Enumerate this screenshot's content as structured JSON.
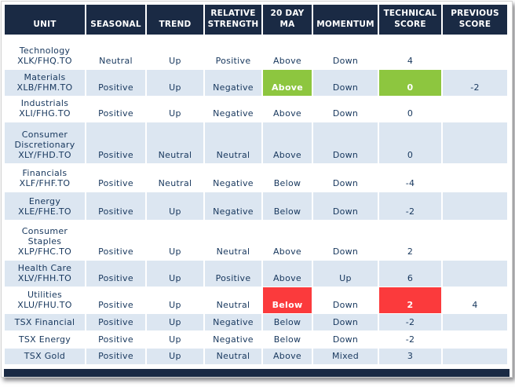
{
  "colors": {
    "header_bg": "#1a2a44",
    "alt_row_bg": "#dce6f1",
    "highlight_green": "#8dc63f",
    "highlight_red": "#fb3a3c",
    "cell_text": "#17375d"
  },
  "table": {
    "columns": [
      {
        "key": "unit",
        "label": "UNIT"
      },
      {
        "key": "seasonal",
        "label": "SEASONAL"
      },
      {
        "key": "trend",
        "label": "TREND"
      },
      {
        "key": "relative_strength",
        "label": "RELATIVE STRENGTH"
      },
      {
        "key": "ma_20day",
        "label": "20 DAY MA"
      },
      {
        "key": "momentum",
        "label": "MOMENTUM"
      },
      {
        "key": "technical_score",
        "label": "TECHNICAL SCORE"
      },
      {
        "key": "previous_score",
        "label": "PREVIOUS SCORE"
      }
    ],
    "rows": [
      {
        "unit_name": "Technology",
        "unit_ticker": "XLK/FHQ.TO",
        "seasonal": "Neutral",
        "trend": "Up",
        "relative_strength": "Positive",
        "ma_20day": "Above",
        "momentum": "Down",
        "technical_score": "4",
        "previous_score": "",
        "highlights": {}
      },
      {
        "unit_name": "Materials",
        "unit_ticker": "XLB/FHM.TO",
        "seasonal": "Positive",
        "trend": "Up",
        "relative_strength": "Negative",
        "ma_20day": "Above",
        "momentum": "Down",
        "technical_score": "0",
        "previous_score": "-2",
        "highlights": {
          "ma_20day": "green",
          "technical_score": "green"
        }
      },
      {
        "unit_name": "Industrials",
        "unit_ticker": "XLI/FHG.TO",
        "seasonal": "Positive",
        "trend": "Up",
        "relative_strength": "Negative",
        "ma_20day": "Above",
        "momentum": "Down",
        "technical_score": "0",
        "previous_score": "",
        "highlights": {}
      },
      {
        "unit_name": "Consumer Discretionary",
        "unit_ticker": "XLY/FHD.TO",
        "seasonal": "Positive",
        "trend": "Neutral",
        "relative_strength": "Neutral",
        "ma_20day": "Above",
        "momentum": "Down",
        "technical_score": "0",
        "previous_score": "",
        "highlights": {}
      },
      {
        "unit_name": "Financials",
        "unit_ticker": "XLF/FHF.TO",
        "seasonal": "Positive",
        "trend": "Neutral",
        "relative_strength": "Negative",
        "ma_20day": "Below",
        "momentum": "Down",
        "technical_score": "-4",
        "previous_score": "",
        "highlights": {}
      },
      {
        "unit_name": "Energy",
        "unit_ticker": "XLE/FHE.TO",
        "seasonal": "Positive",
        "trend": "Up",
        "relative_strength": "Negative",
        "ma_20day": "Below",
        "momentum": "Down",
        "technical_score": "-2",
        "previous_score": "",
        "highlights": {}
      },
      {
        "unit_name": "Consumer Staples",
        "unit_ticker": "XLP/FHC.TO",
        "seasonal": "Positive",
        "trend": "Up",
        "relative_strength": "Neutral",
        "ma_20day": "Above",
        "momentum": "Down",
        "technical_score": "2",
        "previous_score": "",
        "highlights": {}
      },
      {
        "unit_name": "Health Care",
        "unit_ticker": "XLV/FHH.TO",
        "seasonal": "Positive",
        "trend": "Up",
        "relative_strength": "Positive",
        "ma_20day": "Above",
        "momentum": "Up",
        "technical_score": "6",
        "previous_score": "",
        "highlights": {}
      },
      {
        "unit_name": "Utilities",
        "unit_ticker": "XLU/FHU.TO",
        "seasonal": "Positive",
        "trend": "Up",
        "relative_strength": "Neutral",
        "ma_20day": "Below",
        "momentum": "Down",
        "technical_score": "2",
        "previous_score": "4",
        "highlights": {
          "ma_20day": "red",
          "technical_score": "red"
        }
      },
      {
        "unit_name": "TSX Financial",
        "unit_ticker": "",
        "seasonal": "Positive",
        "trend": "Up",
        "relative_strength": "Negative",
        "ma_20day": "Below",
        "momentum": "Down",
        "technical_score": "-2",
        "previous_score": "",
        "highlights": {}
      },
      {
        "unit_name": "TSX Energy",
        "unit_ticker": "",
        "seasonal": "Positive",
        "trend": "Up",
        "relative_strength": "Negative",
        "ma_20day": "Below",
        "momentum": "Down",
        "technical_score": "-2",
        "previous_score": "",
        "highlights": {}
      },
      {
        "unit_name": "TSX Gold",
        "unit_ticker": "",
        "seasonal": "Positive",
        "trend": "Up",
        "relative_strength": "Neutral",
        "ma_20day": "Above",
        "momentum": "Mixed",
        "technical_score": "3",
        "previous_score": "",
        "highlights": {}
      }
    ]
  }
}
